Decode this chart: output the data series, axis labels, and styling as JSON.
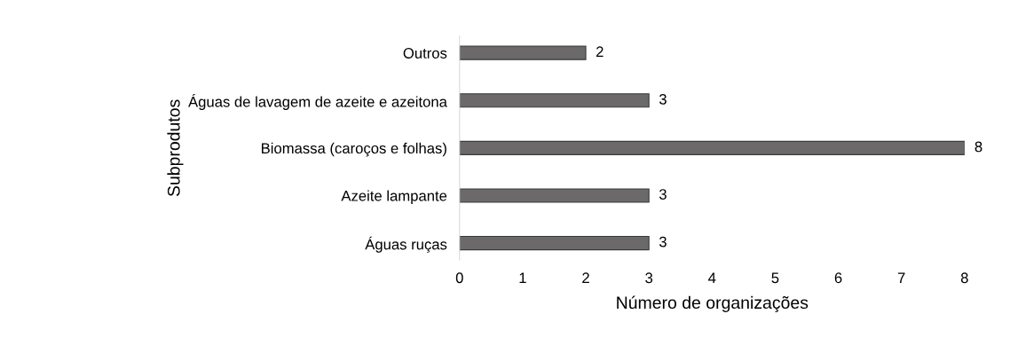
{
  "chart_data": {
    "type": "bar",
    "orientation": "horizontal",
    "categories": [
      "Outros",
      "Águas de lavagem de azeite e azeitona",
      "Biomassa (caroços e folhas)",
      "Azeite lampante",
      "Águas ruças"
    ],
    "values": [
      2,
      3,
      8,
      3,
      3
    ],
    "color": "#6b6969",
    "xlabel": "Número de organizações",
    "ylabel": "Subprodutos",
    "xlim": [
      0,
      8
    ],
    "xticks": [
      0,
      1,
      2,
      3,
      4,
      5,
      6,
      7,
      8
    ],
    "data_labels": true,
    "grid": false,
    "legend": false
  }
}
